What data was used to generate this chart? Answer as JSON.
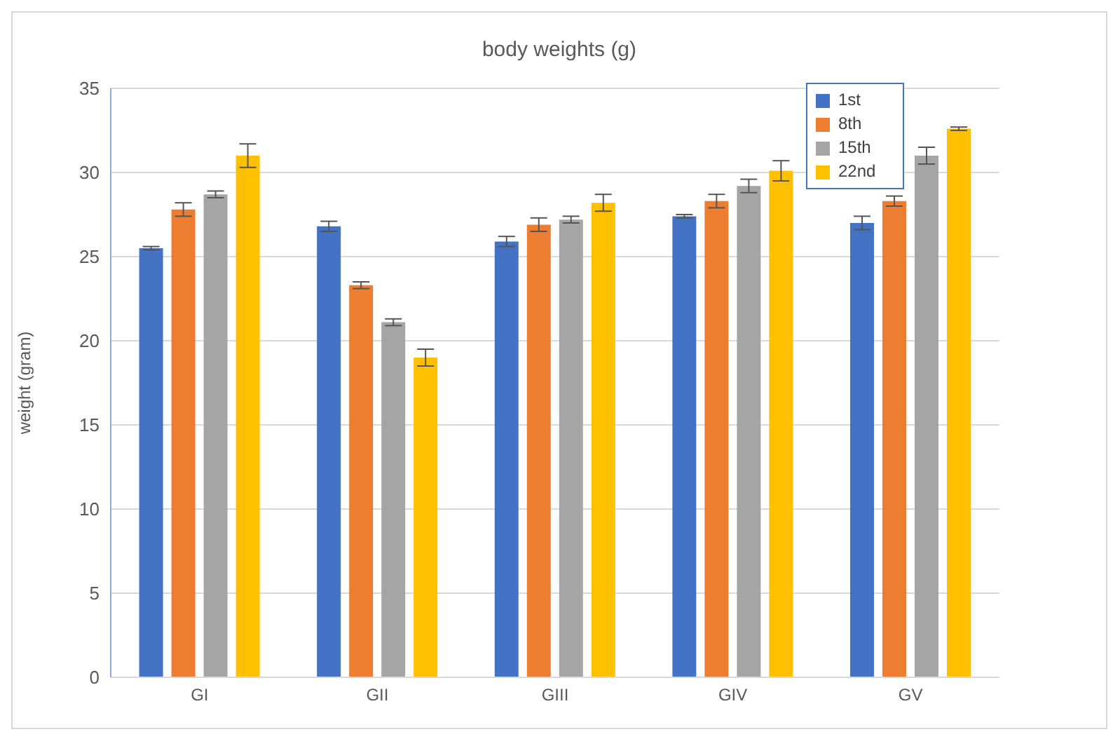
{
  "chart_data": {
    "type": "bar",
    "title": "body weights (g)",
    "ylabel": "weight (gram)",
    "categories": [
      "GI",
      "GII",
      "GIII",
      "GIV",
      "GV"
    ],
    "series": [
      {
        "name": "1st",
        "color": "#4472c4",
        "values": [
          25.5,
          26.8,
          25.9,
          27.4,
          27.0
        ],
        "errors": [
          0.1,
          0.3,
          0.3,
          0.1,
          0.4
        ]
      },
      {
        "name": "8th",
        "color": "#ed7d31",
        "values": [
          27.8,
          23.3,
          26.9,
          28.3,
          28.3
        ],
        "errors": [
          0.4,
          0.2,
          0.4,
          0.4,
          0.3
        ]
      },
      {
        "name": "15th",
        "color": "#a5a5a5",
        "values": [
          28.7,
          21.1,
          27.2,
          29.2,
          31.0
        ],
        "errors": [
          0.2,
          0.2,
          0.2,
          0.4,
          0.5
        ]
      },
      {
        "name": "22nd",
        "color": "#ffc000",
        "values": [
          31.0,
          19.0,
          28.2,
          30.1,
          32.6
        ],
        "errors": [
          0.7,
          0.5,
          0.5,
          0.6,
          0.1
        ]
      }
    ],
    "ylim": [
      0,
      35
    ],
    "yticks": [
      0,
      5,
      10,
      15,
      20,
      25,
      30,
      35
    ],
    "grid": "y",
    "legend": "top right"
  }
}
